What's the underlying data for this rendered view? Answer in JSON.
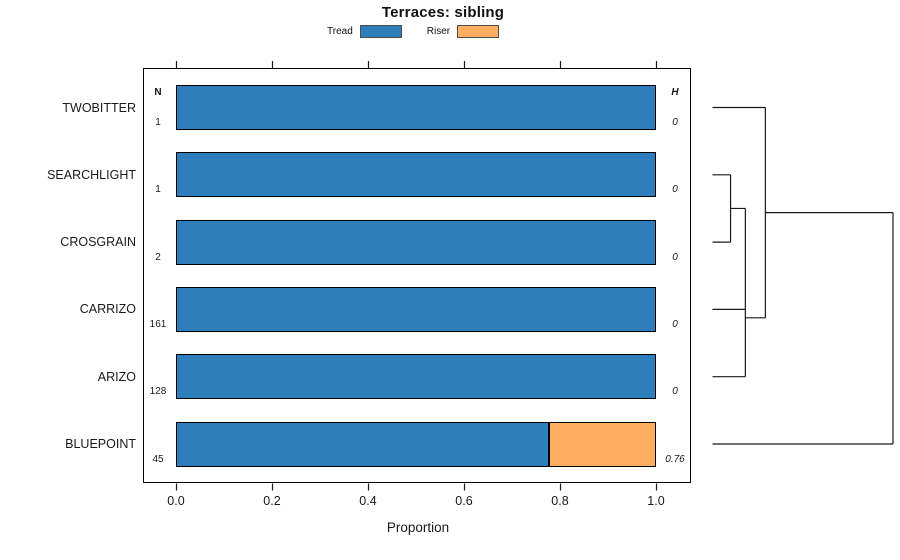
{
  "title": "Terraces: sibling",
  "legend": {
    "items": [
      {
        "label": "Tread",
        "color": "#2E7EBC"
      },
      {
        "label": "Riser",
        "color": "#FDAE61"
      }
    ]
  },
  "axis": {
    "label": "Proportion",
    "range": [
      0,
      1
    ],
    "ticks": [
      {
        "value": 0.0,
        "label": "0.0"
      },
      {
        "value": 0.2,
        "label": "0.2"
      },
      {
        "value": 0.4,
        "label": "0.4"
      },
      {
        "value": 0.6,
        "label": "0.6"
      },
      {
        "value": 0.8,
        "label": "0.8"
      },
      {
        "value": 1.0,
        "label": "1.0"
      }
    ]
  },
  "columns": {
    "n_header": "N",
    "h_header": "H"
  },
  "chart_data": {
    "type": "bar",
    "orientation": "horizontal",
    "stacked": true,
    "grid": false,
    "legend_position": "top",
    "title": "Terraces: sibling",
    "xlabel": "Proportion",
    "xlim": [
      0,
      1
    ],
    "categories": [
      "TWOBITTER",
      "SEARCHLIGHT",
      "CROSGRAIN",
      "CARRIZO",
      "ARIZO",
      "BLUEPOINT"
    ],
    "series": [
      {
        "name": "Tread",
        "color": "#2E7EBC",
        "values": [
          1,
          1,
          1,
          1,
          1,
          0.778
        ]
      },
      {
        "name": "Riser",
        "color": "#FDAE61",
        "values": [
          0,
          0,
          0,
          0,
          0,
          0.222
        ]
      }
    ],
    "n_values": [
      1,
      1,
      2,
      161,
      128,
      45
    ],
    "h_values": [
      "0",
      "0",
      "0",
      "0",
      "0",
      "0.76"
    ],
    "dendrogram": {
      "side": "right",
      "leaves": [
        "TWOBITTER",
        "SEARCHLIGHT",
        "CROSGRAIN",
        "CARRIZO",
        "ARIZO",
        "BLUEPOINT"
      ],
      "merges": [
        {
          "a": "SEARCHLIGHT",
          "b": "CROSGRAIN",
          "height": 0.1
        },
        {
          "a": "@0",
          "b": "CARRIZO",
          "height": 0.182
        },
        {
          "a": "@1",
          "b": "ARIZO",
          "height": 0.182
        },
        {
          "a": "TWOBITTER",
          "b": "@2",
          "height": 0.293
        },
        {
          "a": "@3",
          "b": "BLUEPOINT",
          "height": 1.0
        }
      ]
    }
  }
}
